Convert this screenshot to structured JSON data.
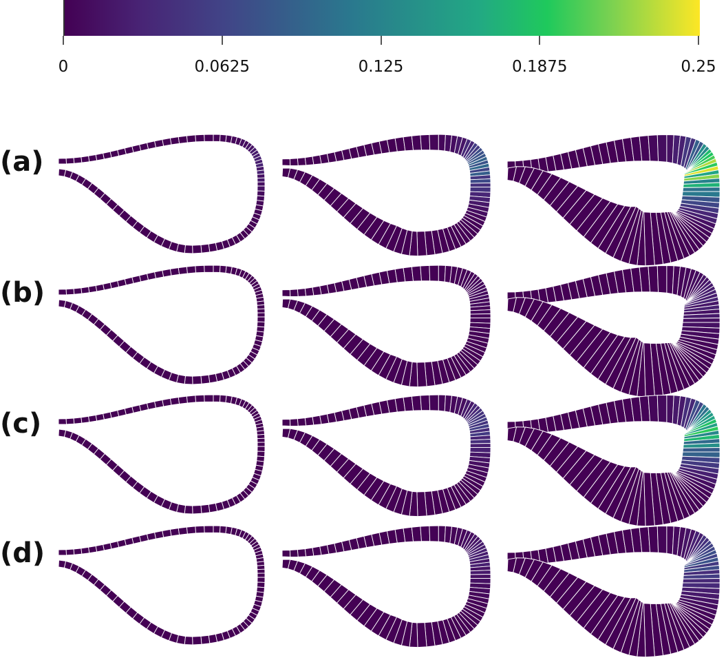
{
  "colorbar": {
    "colormap": "viridis",
    "range": [
      0,
      0.25
    ],
    "ticks": [
      "0",
      "0.0625",
      "0.125",
      "0.1875",
      "0.25"
    ]
  },
  "rows": [
    {
      "label": "(a)",
      "max_values": [
        0.03,
        0.1,
        0.25
      ]
    },
    {
      "label": "(b)",
      "max_values": [
        0.0,
        0.01,
        0.03
      ]
    },
    {
      "label": "(c)",
      "max_values": [
        0.0,
        0.06,
        0.2
      ]
    },
    {
      "label": "(d)",
      "max_values": [
        0.0,
        0.03,
        0.08
      ]
    }
  ],
  "colors": {
    "base": "#440154",
    "peak": "#fde725",
    "segment_gap": "#ffffff"
  }
}
